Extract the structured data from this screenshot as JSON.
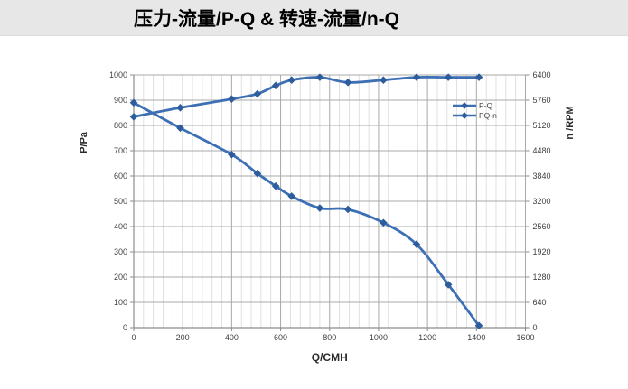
{
  "title": "压力-流量/P-Q &  转速-流量/n-Q",
  "colors": {
    "line": "#3d6fb5",
    "marker": "#2e5d9c",
    "grid_major": "#a9a9a9",
    "grid_minor": "#d8d8d8",
    "axis": "#8c8c8c",
    "text": "#3f3f3f",
    "title_band_bg": "#e8e7e7"
  },
  "chart_data": {
    "type": "line",
    "title": "压力-流量/P-Q &  转速-流量/n-Q",
    "x": [
      0,
      190,
      400,
      505,
      580,
      645,
      760,
      875,
      1020,
      1155,
      1285,
      1410
    ],
    "series": [
      {
        "name": "P-Q",
        "axis": "left",
        "values": [
          890,
          790,
          685,
          610,
          560,
          520,
          473,
          468,
          415,
          330,
          170,
          8
        ]
      },
      {
        "name": "PQ-n",
        "axis": "right",
        "values": [
          5340,
          5570,
          5790,
          5920,
          6130,
          6270,
          6340,
          6210,
          6270,
          6340,
          6340,
          6340
        ]
      }
    ],
    "xlabel": "Q/CMH",
    "ylabel_left": "P/Pa",
    "ylabel_right": "n /RPM",
    "xlim": [
      0,
      1600
    ],
    "ylim_left": [
      0,
      1000
    ],
    "ylim_right": [
      0,
      6400
    ],
    "x_minor_step": 40,
    "x_major_step": 200,
    "x_tick_labels": [
      "0",
      "200",
      "400",
      "600",
      "800",
      "1000",
      "1200",
      "1400",
      "1600"
    ],
    "y_left_tick_labels": [
      "0",
      "100",
      "200",
      "300",
      "400",
      "500",
      "600",
      "700",
      "800",
      "900",
      "1000"
    ],
    "y_right_tick_labels": [
      "0",
      "640",
      "1280",
      "1920",
      "2560",
      "3200",
      "3840",
      "4480",
      "5120",
      "5760",
      "6400"
    ],
    "grid": true,
    "legend": {
      "entries": [
        "P-Q",
        "PQ-n"
      ],
      "position": "inside-right-upper"
    }
  }
}
